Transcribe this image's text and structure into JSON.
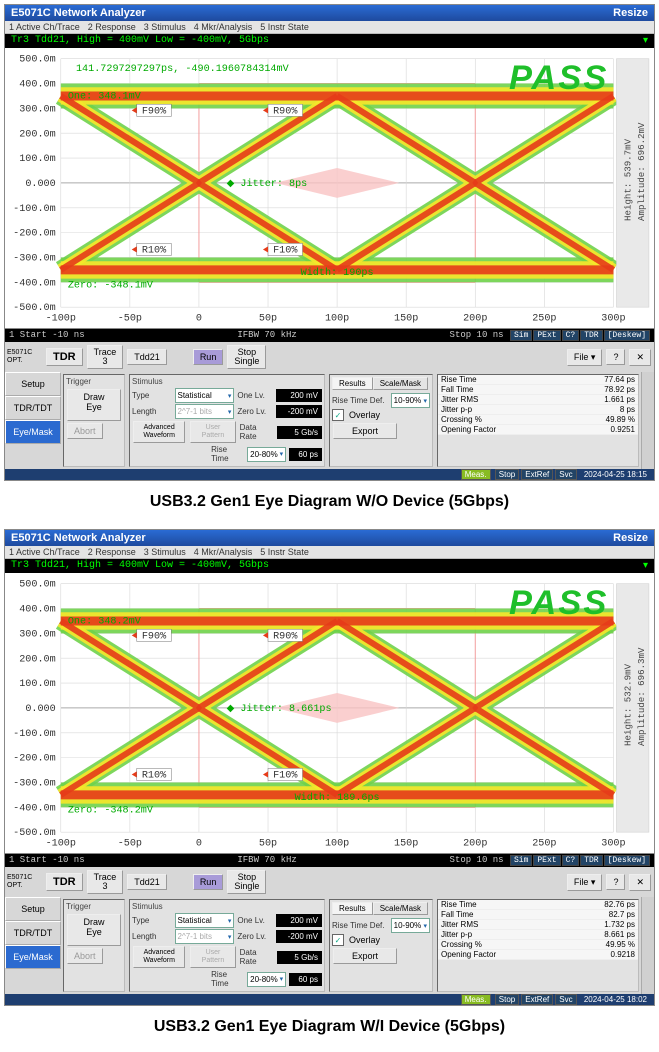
{
  "app_title": "E5071C Network Analyzer",
  "resize": "Resize",
  "menu": [
    "1 Active Ch/Trace",
    "2 Response",
    "3 Stimulus",
    "4 Mkr/Analysis",
    "5 Instr State"
  ],
  "diagrams": [
    {
      "caption": "USB3.2 Gen1 Eye Diagram W/O Device (5Gbps)",
      "trace_line": "Tr3 Tdd21, High = 400mV Low = -400mV, 5Gbps",
      "cursor": "141.7297297297ps, -490.1960784314mV",
      "one": "One: 348.1mV",
      "zero": "Zero: -348.1mV",
      "jitter": "Jitter: 8ps",
      "width": "Width: 190ps",
      "height": "Height: 539.7mV",
      "amplitude": "Amplitude: 696.2mV",
      "pass": "PASS",
      "status_l": "1 Start -10 ns",
      "status_c": "IFBW 70 kHz",
      "status_r": "Stop 10 ns",
      "status_btns": [
        "Sim",
        "PExt",
        "C?",
        "TDR",
        "[Deskew]"
      ],
      "y_ticks": [
        "500.0m",
        "400.0m",
        "300.0m",
        "200.0m",
        "100.0m",
        "0.000",
        "-100.0m",
        "-200.0m",
        "-300.0m",
        "-400.0m",
        "-500.0m"
      ],
      "x_ticks": [
        "-100p",
        "-50p",
        "0",
        "50p",
        "100p",
        "150p",
        "200p",
        "250p",
        "300p"
      ],
      "timestamp": "2024-04-25 18:15",
      "results": [
        [
          "Rise Time",
          "77.64 ps"
        ],
        [
          "Fall Time",
          "78.92 ps"
        ],
        [
          "Jitter RMS",
          "1.661 ps"
        ],
        [
          "Jitter p-p",
          "8 ps"
        ],
        [
          "Crossing %",
          "49.89 %"
        ],
        [
          "Opening Factor",
          "0.9251"
        ]
      ]
    },
    {
      "caption": "USB3.2 Gen1 Eye Diagram W/I Device (5Gbps)",
      "trace_line": "Tr3 Tdd21, High = 400mV Low = -400mV, 5Gbps",
      "cursor": "",
      "one": "One: 348.2mV",
      "zero": "Zero: -348.2mV",
      "jitter": "Jitter: 8.661ps",
      "width": "Width: 189.6ps",
      "height": "Height: 532.9mV",
      "amplitude": "Amplitude: 696.3mV",
      "pass": "PASS",
      "status_l": "1 Start -10 ns",
      "status_c": "IFBW 70 kHz",
      "status_r": "Stop 10 ns",
      "status_btns": [
        "Sim",
        "PExt",
        "C?",
        "TDR",
        "[Deskew]"
      ],
      "y_ticks": [
        "500.0m",
        "400.0m",
        "300.0m",
        "200.0m",
        "100.0m",
        "0.000",
        "-100.0m",
        "-200.0m",
        "-300.0m",
        "-400.0m",
        "-500.0m"
      ],
      "x_ticks": [
        "-100p",
        "-50p",
        "0",
        "50p",
        "100p",
        "150p",
        "200p",
        "250p",
        "300p"
      ],
      "timestamp": "2024-04-25 18:02",
      "results": [
        [
          "Rise Time",
          "82.76 ps"
        ],
        [
          "Fall Time",
          "82.7 ps"
        ],
        [
          "Jitter RMS",
          "1.732 ps"
        ],
        [
          "Jitter p-p",
          "8.661 ps"
        ],
        [
          "Crossing %",
          "49.95 %"
        ],
        [
          "Opening Factor",
          "0.9218"
        ]
      ]
    }
  ],
  "ctrl": {
    "left_label": "E5071C\nOPT.",
    "tdr": "TDR",
    "trace_btn": "Trace\n3",
    "tdd_btn": "Tdd21",
    "run": "Run",
    "stop": "Stop\nSingle",
    "file": "File",
    "tabs": [
      "Setup",
      "TDR/TDT",
      "Eye/Mask"
    ],
    "trigger": "Trigger",
    "draw_eye": "Draw\nEye",
    "abort": "Abort",
    "stimulus": "Stimulus",
    "type": "Type",
    "type_v": "Statistical",
    "length": "Length",
    "length_v": "2^7-1 bits",
    "adv": "Advanced\nWaveform",
    "user": "User\nPattern",
    "one_lv": "One Lv.",
    "one_lv_v": "200 mV",
    "zero_lv": "Zero Lv.",
    "zero_lv_v": "-200 mV",
    "data_rate": "Data Rate",
    "data_rate_v": "5 Gb/s",
    "rise_time": "Rise Time",
    "rise_sel": "20-80%",
    "rise_v": "60 ps",
    "res_tab": "Results",
    "scale_tab": "Scale/Mask",
    "rt_def": "Rise Time Def.",
    "rt_def_v": "10-90%",
    "overlay": "Overlay",
    "export": "Export",
    "meas": "Meas.",
    "foot_btns": [
      "Stop",
      "ExtRef",
      "Svc"
    ]
  },
  "markers": {
    "f90": "F90%",
    "r90": "R90%",
    "r10": "R10%",
    "f10": "F10%"
  },
  "chart": {
    "bg": "#ffffff",
    "grid": "#d8d8d8",
    "accent_grid": "#f4a0a0",
    "trace_outer": "#6fd24a",
    "trace_mid": "#f7e72a",
    "trace_core": "#e63b19",
    "mask_fill": "#f9c3c3",
    "pass_color": "#1fbf2a",
    "ylim": [
      -500,
      500
    ],
    "xlim": [
      -100,
      300
    ]
  }
}
